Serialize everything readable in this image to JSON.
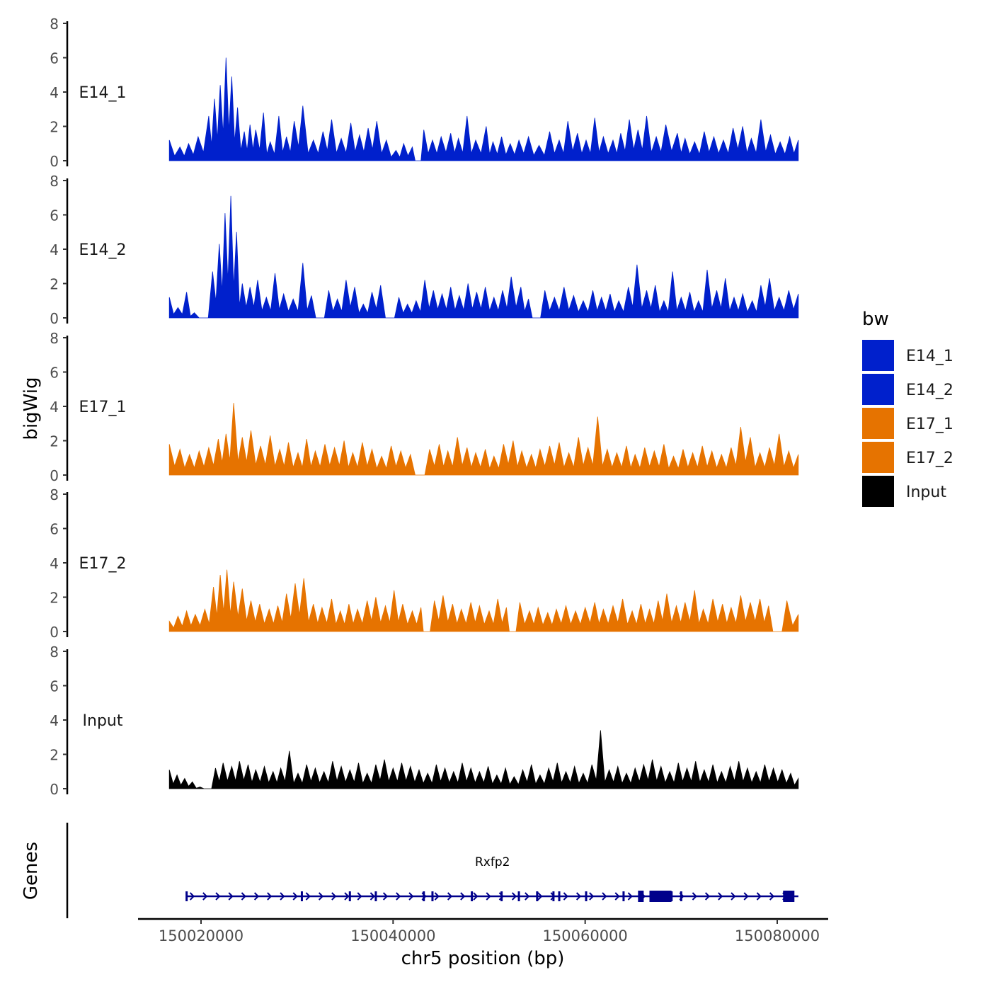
{
  "chart_data": {
    "type": "area",
    "ylabel": "bigWig",
    "xlabel": "chr5 position (bp)",
    "chromosome": "chr5",
    "x_range": [
      150016700,
      150082200
    ],
    "x_ticks": [
      150020000,
      150040000,
      150060000,
      150080000
    ],
    "x_tick_labels": [
      "150020000",
      "150040000",
      "150060000",
      "150080000"
    ],
    "y_ticks": [
      0,
      2,
      4,
      6,
      8
    ],
    "y_tick_labels": [
      "0",
      "2",
      "4",
      "6",
      "8"
    ],
    "ylim": [
      0,
      8
    ],
    "legend": {
      "title": "bw",
      "position": "right",
      "entries": [
        {
          "label": "E14_1",
          "color": "#0020cc"
        },
        {
          "label": "E14_2",
          "color": "#0020cc"
        },
        {
          "label": "E17_1",
          "color": "#e67300"
        },
        {
          "label": "E17_2",
          "color": "#e67300"
        },
        {
          "label": "Input",
          "color": "#000000"
        }
      ]
    },
    "series": [
      {
        "name": "E14_1",
        "label": "E14_1",
        "color": "#0020cc",
        "x": [
          150016700,
          150017800,
          150018700,
          150019700,
          150020800,
          150021400,
          150022000,
          150022600,
          150023200,
          150023800,
          150024500,
          150025100,
          150025700,
          150026500,
          150027200,
          150028100,
          150028900,
          150029700,
          150030600,
          150031700,
          150032700,
          150033600,
          150034600,
          150035600,
          150036500,
          150037400,
          150038300,
          150039300,
          150040300,
          150041100,
          150042000,
          150042600,
          150043200,
          150044100,
          150045000,
          150046000,
          150046800,
          150047700,
          150048600,
          150049700,
          150050400,
          150051300,
          150052200,
          150053100,
          150054100,
          150055200,
          150056300,
          150057300,
          150058200,
          150059200,
          150060100,
          150061000,
          150061900,
          150062900,
          150063700,
          150064600,
          150065500,
          150066400,
          150067400,
          150068400,
          150069600,
          150070400,
          150071400,
          150072400,
          150073400,
          150074400,
          150075400,
          150076400,
          150077300,
          150078300,
          150079300,
          150080300,
          150081300,
          150082200
        ],
        "values": [
          1.2,
          0.8,
          1.0,
          1.4,
          2.6,
          3.6,
          4.4,
          6.0,
          4.9,
          3.1,
          1.7,
          2.1,
          1.8,
          2.8,
          1.1,
          2.6,
          1.4,
          2.3,
          3.2,
          1.2,
          1.7,
          2.4,
          1.3,
          2.2,
          1.5,
          1.9,
          2.3,
          1.2,
          0.6,
          1.0,
          0.8,
          0.0,
          1.8,
          1.2,
          1.4,
          1.6,
          1.3,
          2.6,
          1.2,
          2.0,
          1.1,
          1.4,
          1.0,
          1.2,
          1.4,
          0.9,
          1.7,
          1.2,
          2.3,
          1.6,
          1.2,
          2.5,
          1.4,
          1.2,
          1.6,
          2.4,
          1.8,
          2.6,
          1.4,
          2.1,
          1.6,
          1.3,
          1.1,
          1.7,
          1.4,
          1.2,
          1.9,
          2.0,
          1.3,
          2.4,
          1.5,
          1.1,
          1.4,
          1.2
        ]
      },
      {
        "name": "E14_2",
        "label": "E14_2",
        "color": "#0020cc",
        "x": [
          150016700,
          150017600,
          150018500,
          150019300,
          150020300,
          150021200,
          150021900,
          150022500,
          150023100,
          150023700,
          150024300,
          150025100,
          150025900,
          150026800,
          150027700,
          150028600,
          150029600,
          150030600,
          150031500,
          150032400,
          150033300,
          150034200,
          150035100,
          150036000,
          150036900,
          150037800,
          150038700,
          150039700,
          150040600,
          150041500,
          150042400,
          150043300,
          150044200,
          150045100,
          150046000,
          150046900,
          150047800,
          150048700,
          150049600,
          150050500,
          150051400,
          150052300,
          150053300,
          150054100,
          150054900,
          150055800,
          150056800,
          150057800,
          150058800,
          150059800,
          150060800,
          150061700,
          150062600,
          150063500,
          150064500,
          150065400,
          150066400,
          150067300,
          150068200,
          150069100,
          150070000,
          150070900,
          150071800,
          150072700,
          150073700,
          150074600,
          150075500,
          150076400,
          150077400,
          150078300,
          150079200,
          150080200,
          150081200,
          150082200
        ],
        "values": [
          1.2,
          0.6,
          1.5,
          0.3,
          0.0,
          2.7,
          4.3,
          6.1,
          7.1,
          5.0,
          2.0,
          1.8,
          2.2,
          1.2,
          2.6,
          1.4,
          1.1,
          3.2,
          1.3,
          0.0,
          1.6,
          1.1,
          2.2,
          1.8,
          0.8,
          1.5,
          1.9,
          0.0,
          1.2,
          0.8,
          1.0,
          2.2,
          1.6,
          1.4,
          1.8,
          1.3,
          2.0,
          1.5,
          1.8,
          1.2,
          1.6,
          2.4,
          1.8,
          1.1,
          0.0,
          1.6,
          1.2,
          1.8,
          1.3,
          1.0,
          1.6,
          1.2,
          1.4,
          1.0,
          1.8,
          3.1,
          1.6,
          1.9,
          1.0,
          2.7,
          1.2,
          1.5,
          1.0,
          2.8,
          1.6,
          2.3,
          1.2,
          1.4,
          1.0,
          1.9,
          2.3,
          1.2,
          1.6,
          1.4
        ]
      },
      {
        "name": "E17_1",
        "label": "E17_1",
        "color": "#e67300",
        "x": [
          150016700,
          150017800,
          150018800,
          150019800,
          150020800,
          150021800,
          150022600,
          150023400,
          150024300,
          150025200,
          150026200,
          150027200,
          150028200,
          150029100,
          150030100,
          150031000,
          150031900,
          150032900,
          150033900,
          150034900,
          150035800,
          150036800,
          150037800,
          150038800,
          150039800,
          150040800,
          150041800,
          150042800,
          150043800,
          150044800,
          150045700,
          150046700,
          150047700,
          150048600,
          150049600,
          150050500,
          150051500,
          150052500,
          150053400,
          150054400,
          150055300,
          150056300,
          150057300,
          150058300,
          150059300,
          150060300,
          150061300,
          150062300,
          150063300,
          150064300,
          150065200,
          150066200,
          150067200,
          150068200,
          150069200,
          150070200,
          150071200,
          150072200,
          150073200,
          150074200,
          150075200,
          150076200,
          150077200,
          150078200,
          150079200,
          150080200,
          150081200,
          150082200
        ],
        "values": [
          1.8,
          1.5,
          1.2,
          1.4,
          1.6,
          2.1,
          2.4,
          4.2,
          2.2,
          2.6,
          1.7,
          2.3,
          1.5,
          1.9,
          1.3,
          2.1,
          1.4,
          1.8,
          1.6,
          2.0,
          1.3,
          1.9,
          1.5,
          1.1,
          1.7,
          1.4,
          1.2,
          0.0,
          1.5,
          1.8,
          1.4,
          2.2,
          1.6,
          1.3,
          1.5,
          1.1,
          1.8,
          2.0,
          1.4,
          1.2,
          1.5,
          1.7,
          1.9,
          1.3,
          2.2,
          1.6,
          3.4,
          1.5,
          1.3,
          1.7,
          1.2,
          1.6,
          1.4,
          1.8,
          1.1,
          1.5,
          1.3,
          1.7,
          1.4,
          1.2,
          1.6,
          2.8,
          2.2,
          1.3,
          1.6,
          2.4,
          1.4,
          1.2
        ]
      },
      {
        "name": "E17_2",
        "label": "E17_2",
        "color": "#e67300",
        "x": [
          150016700,
          150017600,
          150018500,
          150019400,
          150020400,
          150021300,
          150022000,
          150022700,
          150023400,
          150024300,
          150025200,
          150026100,
          150027100,
          150028000,
          150028900,
          150029800,
          150030700,
          150031700,
          150032600,
          150033600,
          150034500,
          150035400,
          150036300,
          150037300,
          150038200,
          150039200,
          150040100,
          150041000,
          150042000,
          150042900,
          150043400,
          150044300,
          150045200,
          150046200,
          150047100,
          150048100,
          150049000,
          150050000,
          150050900,
          150051800,
          150052400,
          150053200,
          150054200,
          150055100,
          150056100,
          150057000,
          150058000,
          150059000,
          150060000,
          150061000,
          150061900,
          150062900,
          150063900,
          150064900,
          150065800,
          150066700,
          150067600,
          150068500,
          150069500,
          150070400,
          150071400,
          150072300,
          150073300,
          150074300,
          150075200,
          150076200,
          150077200,
          150078200,
          150079100,
          150080000,
          150081000,
          150082200
        ],
        "values": [
          0.6,
          0.9,
          1.2,
          1.0,
          1.3,
          2.6,
          3.3,
          3.6,
          2.9,
          2.5,
          1.8,
          1.6,
          1.3,
          1.5,
          2.2,
          2.8,
          3.1,
          1.6,
          1.4,
          1.9,
          1.2,
          1.6,
          1.3,
          1.8,
          2.0,
          1.5,
          2.4,
          1.6,
          1.2,
          1.4,
          0.0,
          1.8,
          2.1,
          1.6,
          1.3,
          1.7,
          1.5,
          1.2,
          1.9,
          1.4,
          0.0,
          1.7,
          1.2,
          1.4,
          1.1,
          1.3,
          1.5,
          1.2,
          1.4,
          1.7,
          1.3,
          1.5,
          1.9,
          1.2,
          1.6,
          1.3,
          1.8,
          2.2,
          1.5,
          1.7,
          2.4,
          1.3,
          1.9,
          1.6,
          1.4,
          2.1,
          1.7,
          1.9,
          1.5,
          0.0,
          1.8,
          1.0
        ]
      },
      {
        "name": "Input",
        "label": "Input",
        "color": "#000000",
        "x": [
          150016700,
          150017500,
          150018300,
          150019100,
          150019900,
          150020700,
          150021500,
          150022300,
          150023200,
          150024000,
          150024900,
          150025700,
          150026600,
          150027500,
          150028300,
          150029200,
          150030100,
          150031000,
          150031900,
          150032800,
          150033700,
          150034600,
          150035500,
          150036400,
          150037300,
          150038200,
          150039100,
          150040000,
          150040900,
          150041800,
          150042700,
          150043600,
          150044500,
          150045400,
          150046300,
          150047200,
          150048100,
          150049000,
          150049900,
          150050800,
          150051700,
          150052600,
          150053500,
          150054400,
          150055300,
          150056200,
          150057100,
          150058000,
          150058900,
          150059800,
          150060700,
          150061600,
          150062500,
          150063400,
          150064300,
          150065200,
          150066100,
          150067000,
          150067900,
          150068800,
          150069700,
          150070600,
          150071500,
          150072400,
          150073300,
          150074200,
          150075100,
          150076000,
          150076900,
          150077800,
          150078700,
          150079600,
          150080500,
          150081400,
          150082200
        ],
        "values": [
          1.1,
          0.8,
          0.6,
          0.4,
          0.1,
          0.0,
          1.2,
          1.5,
          1.3,
          1.6,
          1.4,
          1.1,
          1.3,
          1.0,
          1.2,
          2.2,
          0.9,
          1.4,
          1.2,
          1.0,
          1.6,
          1.3,
          1.1,
          1.5,
          0.9,
          1.4,
          1.7,
          1.2,
          1.5,
          1.3,
          1.1,
          0.9,
          1.4,
          1.2,
          1.0,
          1.5,
          1.2,
          1.0,
          1.3,
          0.8,
          1.2,
          0.7,
          1.1,
          1.4,
          0.8,
          1.2,
          1.5,
          1.0,
          1.3,
          0.9,
          1.4,
          3.4,
          1.1,
          1.3,
          0.9,
          1.2,
          1.4,
          1.7,
          1.3,
          1.0,
          1.5,
          1.2,
          1.6,
          1.1,
          1.4,
          1.0,
          1.3,
          1.6,
          1.2,
          1.0,
          1.4,
          1.2,
          1.1,
          0.9,
          0.6
        ]
      }
    ],
    "genes_track": {
      "label": "Genes",
      "genes": [
        {
          "name": "Rxfp2",
          "start": 150018500,
          "end": 150082200,
          "strand": "+",
          "exons": [
            150018500,
            150030500,
            150035500,
            150038200,
            150043200,
            150044100,
            150048200,
            150051300,
            150053100,
            150055000,
            150056700,
            150057300,
            150060100,
            150064000,
            150065800,
            150067800,
            150068400,
            150069000,
            150070000,
            150081200
          ]
        }
      ]
    }
  }
}
